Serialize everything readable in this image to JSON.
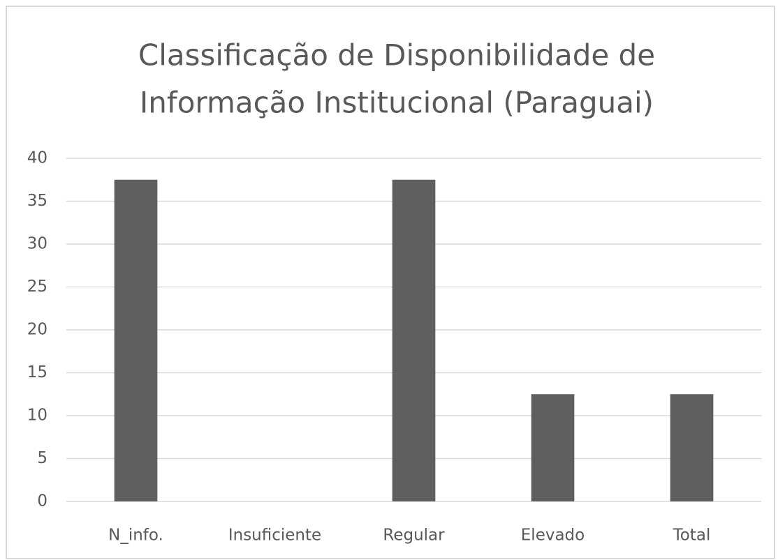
{
  "chart_data": {
    "type": "bar",
    "title": [
      "Classificação de Disponibilidade de",
      "Informação Institucional (Paraguai)"
    ],
    "categories": [
      "N_info.",
      "Insuficiente",
      "Regular",
      "Elevado",
      "Total"
    ],
    "values": [
      37.5,
      0,
      37.5,
      12.5,
      12.5
    ],
    "color": "#5f5f5f",
    "ylim": [
      0,
      40
    ],
    "yticks": [
      0,
      5,
      10,
      15,
      20,
      25,
      30,
      35,
      40
    ],
    "grid": true
  }
}
